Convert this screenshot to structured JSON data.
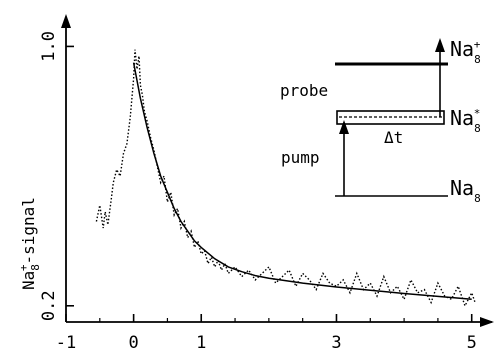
{
  "chart_data": {
    "type": "line",
    "title": "",
    "xlabel": "",
    "ylabel": {
      "base": "Na",
      "sub": "8",
      "sup": "+",
      "suffix": "-signal"
    },
    "xlim": [
      -1,
      5.3
    ],
    "ylim": [
      0.15,
      1.1
    ],
    "xticks": [
      -1,
      0,
      1,
      3,
      5
    ],
    "xtick_labels": [
      "-1",
      "0",
      "1",
      "3",
      "5"
    ],
    "yticks": [
      0.2,
      1.0
    ],
    "ytick_labels": [
      "0.2",
      "1.0"
    ],
    "grid": false,
    "series": [
      {
        "style": "dotted",
        "x": [
          -0.55,
          -0.5,
          -0.45,
          -0.42,
          -0.38,
          -0.33,
          -0.3,
          -0.25,
          -0.2,
          -0.15,
          -0.1,
          -0.05,
          0.0,
          0.02,
          0.05,
          0.08,
          0.1,
          0.13,
          0.16,
          0.2,
          0.25,
          0.3,
          0.35,
          0.4,
          0.45,
          0.5,
          0.55,
          0.6,
          0.65,
          0.7,
          0.75,
          0.8,
          0.85,
          0.9,
          0.95,
          1.0,
          1.05,
          1.1,
          1.15,
          1.2,
          1.25,
          1.3,
          1.35,
          1.4,
          1.5,
          1.6,
          1.7,
          1.8,
          1.9,
          2.0,
          2.1,
          2.2,
          2.3,
          2.4,
          2.5,
          2.6,
          2.7,
          2.8,
          2.9,
          3.0,
          3.1,
          3.2,
          3.3,
          3.4,
          3.5,
          3.6,
          3.7,
          3.8,
          3.9,
          4.0,
          4.1,
          4.2,
          4.3,
          4.4,
          4.5,
          4.6,
          4.7,
          4.8,
          4.9,
          5.0,
          5.05
        ],
        "y": [
          0.46,
          0.51,
          0.44,
          0.49,
          0.45,
          0.53,
          0.58,
          0.62,
          0.6,
          0.67,
          0.7,
          0.78,
          0.9,
          0.99,
          0.93,
          0.97,
          0.88,
          0.85,
          0.8,
          0.77,
          0.72,
          0.68,
          0.63,
          0.58,
          0.6,
          0.52,
          0.55,
          0.48,
          0.5,
          0.44,
          0.46,
          0.41,
          0.43,
          0.38,
          0.4,
          0.36,
          0.37,
          0.33,
          0.35,
          0.32,
          0.34,
          0.31,
          0.33,
          0.3,
          0.32,
          0.29,
          0.31,
          0.28,
          0.3,
          0.32,
          0.27,
          0.29,
          0.31,
          0.26,
          0.3,
          0.28,
          0.25,
          0.3,
          0.27,
          0.26,
          0.28,
          0.24,
          0.3,
          0.25,
          0.27,
          0.23,
          0.29,
          0.24,
          0.26,
          0.22,
          0.28,
          0.24,
          0.25,
          0.21,
          0.27,
          0.23,
          0.22,
          0.26,
          0.2,
          0.24,
          0.21
        ]
      },
      {
        "style": "solid",
        "x": [
          0.0,
          0.1,
          0.2,
          0.3,
          0.4,
          0.5,
          0.6,
          0.7,
          0.8,
          0.9,
          1.0,
          1.2,
          1.4,
          1.6,
          1.8,
          2.0,
          2.5,
          3.0,
          3.5,
          4.0,
          4.5,
          5.0
        ],
        "y": [
          0.95,
          0.84,
          0.75,
          0.67,
          0.6,
          0.55,
          0.5,
          0.46,
          0.43,
          0.4,
          0.38,
          0.345,
          0.32,
          0.305,
          0.293,
          0.285,
          0.27,
          0.258,
          0.248,
          0.238,
          0.229,
          0.22
        ]
      }
    ],
    "inset": {
      "type": "level-diagram",
      "labels": {
        "probe": "probe",
        "pump": "pump",
        "delta": "Δt"
      },
      "levels": [
        {
          "base": "Na",
          "sub": "8",
          "sup": "+"
        },
        {
          "base": "Na",
          "sub": "8",
          "sup": "*"
        },
        {
          "base": "Na",
          "sub": "8",
          "sup": ""
        }
      ]
    }
  }
}
